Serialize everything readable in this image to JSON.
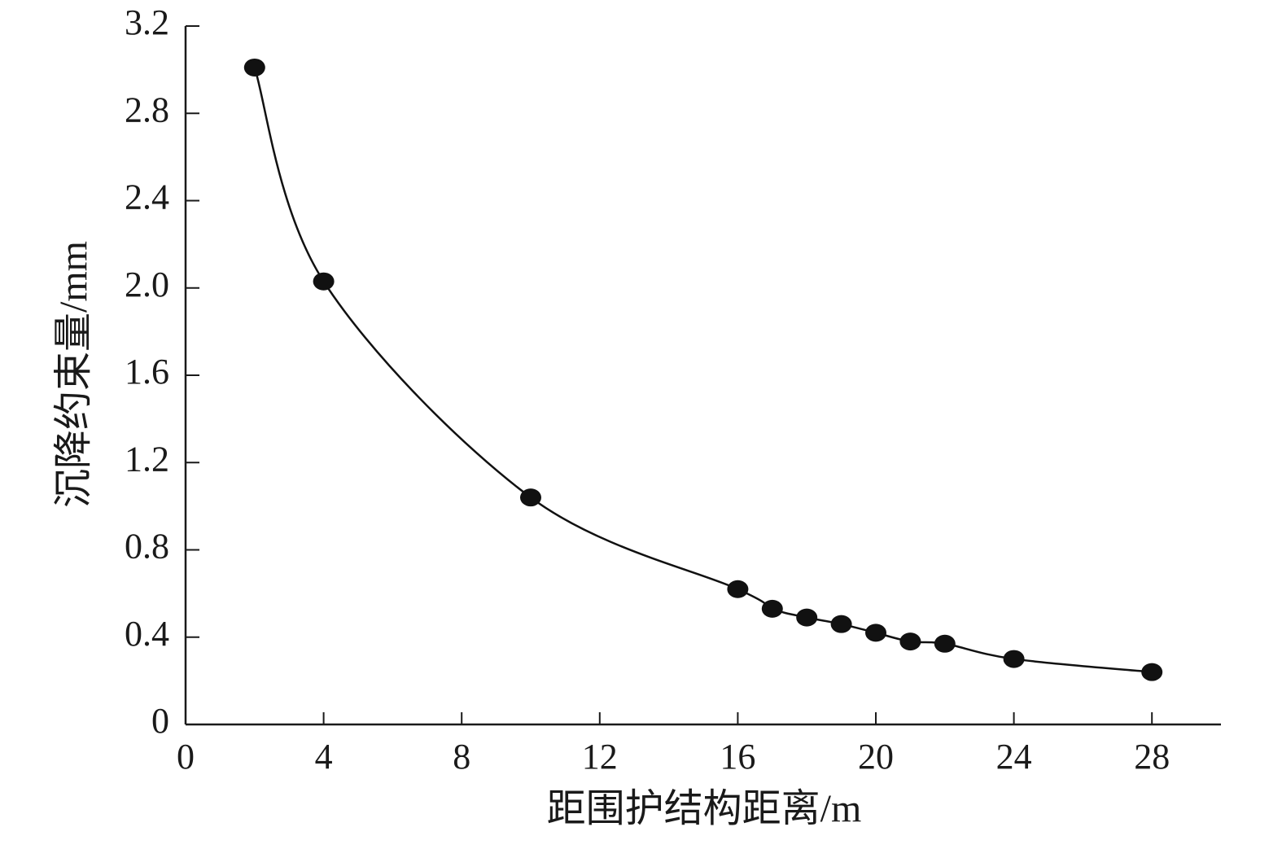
{
  "chart_data": {
    "type": "line",
    "x_label": "距围护结构距离/m",
    "y_label": "沉降约束量/mm",
    "x": [
      2,
      4,
      10,
      16,
      17,
      18,
      19,
      20,
      21,
      22,
      24,
      28
    ],
    "values": [
      3.01,
      2.03,
      1.04,
      0.62,
      0.53,
      0.49,
      0.46,
      0.42,
      0.38,
      0.37,
      0.3,
      0.24
    ],
    "color": "#111111",
    "smooth": true,
    "markers": true,
    "xlim": [
      0,
      30
    ],
    "xticks": [
      0,
      4,
      8,
      12,
      16,
      20,
      24,
      28
    ],
    "ylim": [
      0,
      3.2
    ],
    "yticks": [
      0,
      0.4,
      0.8,
      1.2,
      1.6,
      {
        "value": 2,
        "label": "2.0"
      },
      2.4,
      2.8,
      3.2
    ]
  }
}
